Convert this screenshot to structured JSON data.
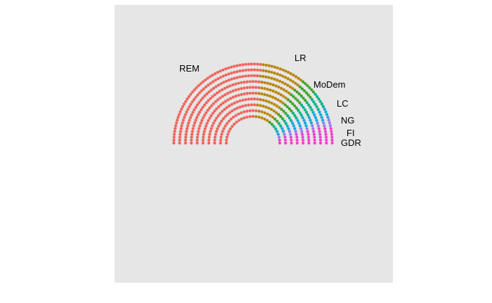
{
  "chart_data": {
    "type": "parliament",
    "total_seats": 577,
    "rows": 10,
    "series": [
      {
        "name": "REM",
        "seats": 308,
        "color": "#f0645c"
      },
      {
        "name": "LR",
        "seats": 100,
        "color": "#b8860b"
      },
      {
        "name": "MoDem",
        "seats": 42,
        "color": "#3fa428"
      },
      {
        "name": "LC",
        "seats": 35,
        "color": "#00b38a"
      },
      {
        "name": "NG",
        "seats": 31,
        "color": "#10a8e0"
      },
      {
        "name": "FI",
        "seats": 17,
        "color": "#8f7cf6"
      },
      {
        "name": "GDR",
        "seats": 44,
        "color": "#f23fcf"
      }
    ],
    "panel_background": "#e6e6e6"
  }
}
